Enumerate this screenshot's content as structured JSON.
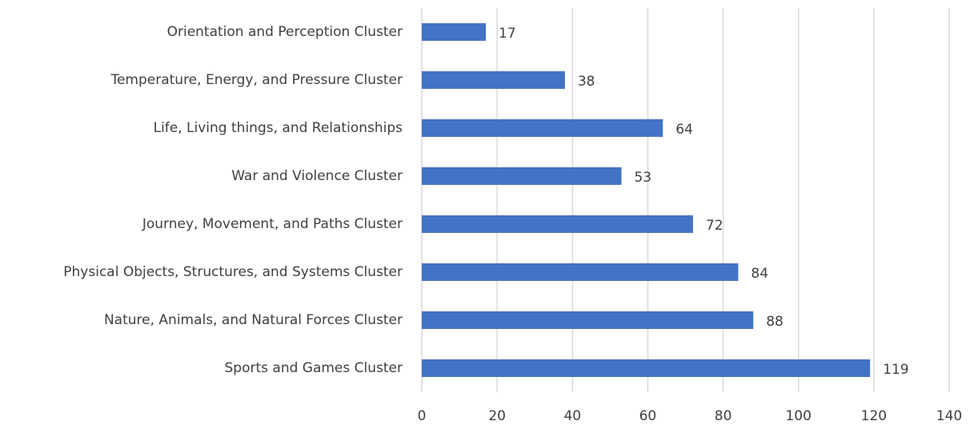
{
  "chart_data": {
    "type": "barh",
    "categories": [
      "Orientation and Perception Cluster",
      "Temperature, Energy, and Pressure Cluster",
      "Life, Living things, and Relationships",
      "War and Violence Cluster",
      "Journey, Movement, and Paths Cluster",
      "Physical Objects, Structures, and Systems Cluster",
      "Nature, Animals, and Natural Forces Cluster",
      "Sports and Games Cluster"
    ],
    "values": [
      17,
      38,
      64,
      53,
      72,
      84,
      88,
      119
    ],
    "color": "#4472c4",
    "xlim": [
      0,
      140
    ],
    "xticks": [
      0,
      20,
      40,
      60,
      80,
      100,
      120,
      140
    ],
    "grid": true
  }
}
